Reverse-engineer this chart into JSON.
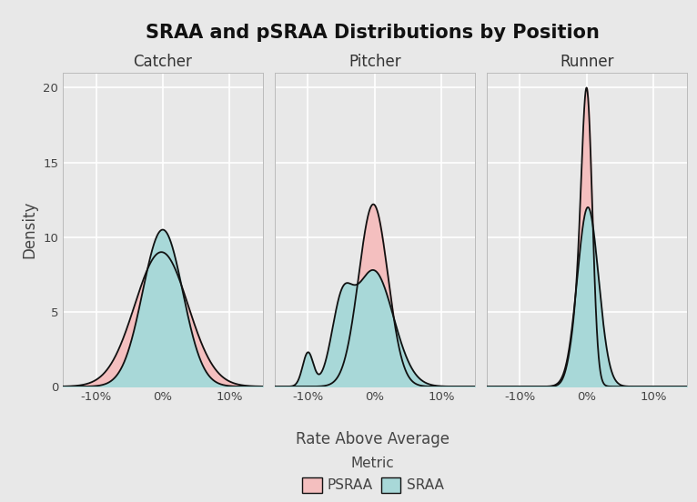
{
  "title": "SRAA and pSRAA Distributions by Position",
  "panels": [
    "Catcher",
    "Pitcher",
    "Runner"
  ],
  "xlabel": "Rate Above Average",
  "ylabel": "Density",
  "legend_title": "Metric",
  "legend_labels": [
    "PSRAA",
    "SRAA"
  ],
  "psraa_color": "#F4BFBF",
  "sraa_color": "#A8D8D8",
  "edge_color": "#111111",
  "background_color": "#E8E8E8",
  "ylim": [
    0,
    21
  ],
  "yticks": [
    0,
    5,
    10,
    15,
    20
  ],
  "xticks": [
    -0.1,
    0.0,
    0.1
  ],
  "xlim": [
    -0.15,
    0.15
  ]
}
